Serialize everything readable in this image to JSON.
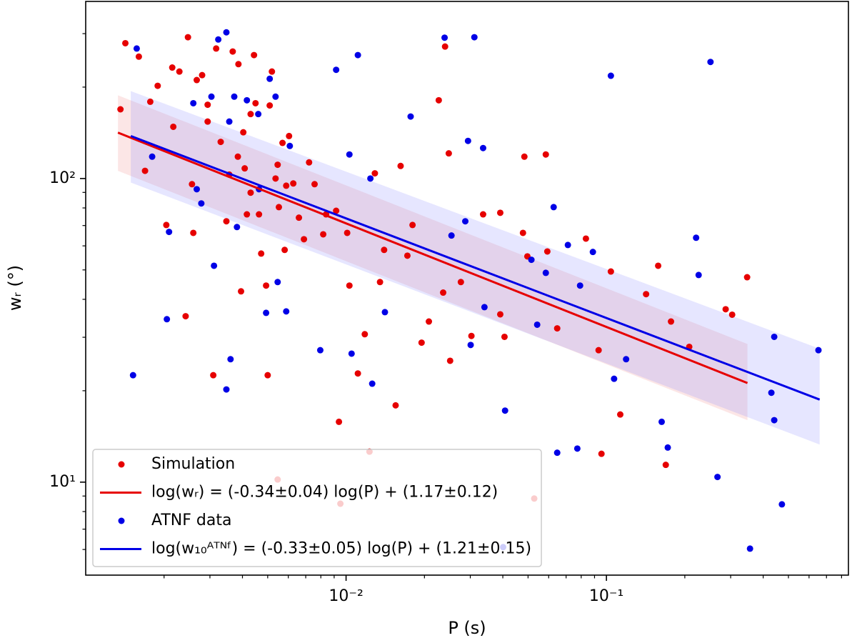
{
  "chart_data": {
    "type": "scatter",
    "xlabel": "P (s)",
    "ylabel": "wᵣ (°)",
    "xscale": "log",
    "yscale": "log",
    "xlim": [
      0.001,
      0.85
    ],
    "ylim": [
      4.94,
      383
    ],
    "xticks": [
      {
        "value": 0.01,
        "label": "10⁻²"
      },
      {
        "value": 0.1,
        "label": "10⁻¹"
      }
    ],
    "yticks": [
      {
        "value": 10,
        "label": "10¹"
      },
      {
        "value": 100,
        "label": "10²"
      }
    ],
    "xminorticks": [
      0.002,
      0.003,
      0.004,
      0.005,
      0.006,
      0.007,
      0.008,
      0.009,
      0.02,
      0.03,
      0.04,
      0.05,
      0.06,
      0.07,
      0.08,
      0.09,
      0.2,
      0.3,
      0.4,
      0.5,
      0.6,
      0.7,
      0.8
    ],
    "yminorticks": [
      6,
      7,
      8,
      9,
      20,
      30,
      40,
      50,
      60,
      70,
      80,
      90,
      200,
      300
    ],
    "legend": "lower left",
    "series": [
      {
        "name": "Simulation",
        "type": "scatter",
        "color": "#e60000",
        "x": [
          0.00136,
          0.00142,
          0.0016,
          0.00177,
          0.00169,
          0.00204,
          0.00217,
          0.00242,
          0.00247,
          0.00256,
          0.00259,
          0.00267,
          0.0028,
          0.00294,
          0.00309,
          0.00317,
          0.0033,
          0.00356,
          0.00367,
          0.00386,
          0.00403,
          0.00408,
          0.0043,
          0.00443,
          0.00449,
          0.00463,
          0.00472,
          0.00493,
          0.00509,
          0.00519,
          0.00536,
          0.00552,
          0.00581,
          0.00604,
          0.00627,
          0.00659,
          0.00689,
          0.00721,
          0.00757,
          0.00817,
          0.00916,
          0.0101,
          0.0103,
          0.00939,
          0.0111,
          0.0118,
          0.0129,
          0.0135,
          0.014,
          0.0155,
          0.0162,
          0.0172,
          0.018,
          0.0195,
          0.0208,
          0.0227,
          0.0236,
          0.024,
          0.0248,
          0.0251,
          0.0276,
          0.0303,
          0.0336,
          0.0391,
          0.0406,
          0.0478,
          0.0484,
          0.0497,
          0.0585,
          0.0593,
          0.0834,
          0.0933,
          0.0957,
          0.113,
          0.142,
          0.158,
          0.169,
          0.177,
          0.208,
          0.287,
          0.304,
          0.347,
          0.00229,
          0.00189,
          0.00294,
          0.0043,
          0.00589,
          0.00416,
          0.00546,
          0.00838,
          0.00215,
          0.00384,
          0.00347,
          0.0057,
          0.0391,
          0.0647,
          0.104,
          0.005,
          0.00395,
          0.0123,
          0.00951,
          0.00546,
          0.0528
        ],
        "values": [
          169,
          279,
          252,
          179,
          106,
          70.3,
          148,
          35.2,
          292,
          95.8,
          66.2,
          211,
          219,
          175,
          22.5,
          268,
          132,
          103,
          262,
          238,
          142,
          108,
          89.8,
          255,
          177,
          76.2,
          56.6,
          44.4,
          174,
          225,
          100,
          80.5,
          58.2,
          138,
          96.3,
          74.3,
          63.1,
          113,
          95.8,
          65.5,
          78.3,
          66.2,
          44.4,
          15.8,
          22.8,
          30.7,
          104,
          45.6,
          58.2,
          17.9,
          110,
          55.7,
          70.3,
          28.8,
          33.8,
          181,
          42.1,
          272,
          121,
          25.1,
          45.6,
          30.3,
          76.2,
          77.1,
          30.1,
          66.2,
          118,
          55.4,
          120,
          57.5,
          63.4,
          27.2,
          12.4,
          16.7,
          41.6,
          51.6,
          11.4,
          33.8,
          27.9,
          37.1,
          35.6,
          47.3,
          225,
          202,
          154,
          163,
          94.7,
          76.2,
          111,
          76.2,
          232,
          118,
          72.3,
          131,
          35.7,
          32.1,
          49.4,
          22.5,
          42.5,
          12.6,
          8.49,
          10.2,
          8.83
        ]
      },
      {
        "name": "log(wᵣ) = (-0.34±0.04) log(P) + (1.17±0.12)",
        "type": "line",
        "color": "#e60000",
        "band_color": "#f08080",
        "x": [
          0.00133,
          0.348
        ],
        "values": [
          141.6,
          21.2
        ],
        "band_lower": [
          106,
          16.0
        ],
        "band_upper": [
          188,
          28.5
        ]
      },
      {
        "name": "ATNF data",
        "type": "scatter",
        "color": "#0000e6",
        "x": [
          0.00152,
          0.00157,
          0.0018,
          0.00209,
          0.00205,
          0.00259,
          0.00267,
          0.00278,
          0.00304,
          0.00311,
          0.00323,
          0.00347,
          0.00347,
          0.00356,
          0.0036,
          0.00372,
          0.00381,
          0.00416,
          0.0046,
          0.00463,
          0.00493,
          0.00509,
          0.00536,
          0.00546,
          0.00589,
          0.00608,
          0.00796,
          0.00916,
          0.0103,
          0.0105,
          0.0111,
          0.0124,
          0.0126,
          0.0141,
          0.0177,
          0.0239,
          0.0254,
          0.0287,
          0.0294,
          0.0311,
          0.0336,
          0.034,
          0.0301,
          0.0408,
          0.0515,
          0.0542,
          0.0585,
          0.0627,
          0.0711,
          0.0792,
          0.0887,
          0.104,
          0.107,
          0.119,
          0.163,
          0.172,
          0.221,
          0.226,
          0.251,
          0.267,
          0.43,
          0.441,
          0.441,
          0.472,
          0.652,
          0.356,
          0.0773,
          0.0647,
          0.0401
        ],
        "values": [
          22.5,
          268,
          118,
          66.7,
          34.4,
          177,
          92.2,
          82.8,
          186,
          51.6,
          287,
          303,
          20.2,
          154,
          25.4,
          186,
          69.2,
          181,
          163,
          92.2,
          36.1,
          213,
          186,
          45.6,
          36.5,
          128,
          27.2,
          228,
          120,
          26.5,
          255,
          100,
          21.1,
          36.3,
          160,
          291,
          64.9,
          72.3,
          133,
          292,
          126,
          37.7,
          28.3,
          17.2,
          54,
          33,
          48.9,
          80.5,
          60.4,
          44.4,
          57.3,
          218,
          21.9,
          25.4,
          15.8,
          13,
          63.8,
          48.1,
          242,
          10.4,
          19.7,
          30.1,
          16,
          8.45,
          27.2,
          6.04,
          12.9,
          12.5,
          6.11
        ]
      },
      {
        "name": "log(w₁₀ᴬᵀᴺᶠ) = (-0.33±0.05) log(P) + (1.21±0.15)",
        "type": "line",
        "color": "#0000e6",
        "band_color": "#8080ff",
        "x": [
          0.00149,
          0.659
        ],
        "values": [
          138,
          18.7
        ],
        "band_lower": [
          97,
          13.3
        ],
        "band_upper": [
          194,
          27.5
        ]
      }
    ]
  }
}
